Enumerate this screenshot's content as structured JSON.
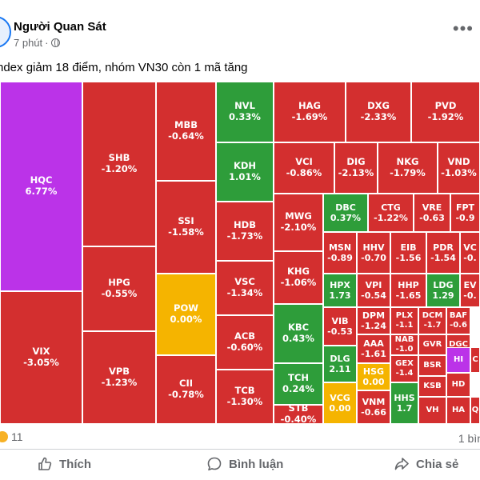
{
  "post": {
    "author": "Người Quan Sát",
    "time": "7 phút",
    "separator": "·",
    "text": "ndex giảm 18 điểm, nhóm VN30 còn 1 mã tăng"
  },
  "colors": {
    "red": "#d32f2f",
    "green": "#2e9d3a",
    "yellow": "#f5b400",
    "purple": "#bb33e8"
  },
  "heatmap": [
    {
      "ticker": "HQC",
      "change": "6.77%",
      "color": "purple",
      "size": "big"
    },
    {
      "ticker": "VIX",
      "change": "-3.05%",
      "color": "red",
      "size": "big"
    },
    {
      "ticker": "SHB",
      "change": "-1.20%",
      "color": "red",
      "size": "big"
    },
    {
      "ticker": "HPG",
      "change": "-0.55%",
      "color": "red",
      "size": "big"
    },
    {
      "ticker": "VPB",
      "change": "-1.23%",
      "color": "red",
      "size": "big"
    },
    {
      "ticker": "MBB",
      "change": "-0.64%",
      "color": "red",
      "size": "big"
    },
    {
      "ticker": "SSI",
      "change": "-1.58%",
      "color": "red",
      "size": "big"
    },
    {
      "ticker": "POW",
      "change": "0.00%",
      "color": "yellow",
      "size": "big"
    },
    {
      "ticker": "CII",
      "change": "-0.78%",
      "color": "red",
      "size": "big"
    },
    {
      "ticker": "NVL",
      "change": "0.33%",
      "color": "green",
      "size": "big"
    },
    {
      "ticker": "KDH",
      "change": "1.01%",
      "color": "green",
      "size": "big"
    },
    {
      "ticker": "HDB",
      "change": "-1.73%",
      "color": "red",
      "size": "big"
    },
    {
      "ticker": "VSC",
      "change": "-1.34%",
      "color": "red",
      "size": "big"
    },
    {
      "ticker": "ACB",
      "change": "-0.60%",
      "color": "red",
      "size": "big"
    },
    {
      "ticker": "TCB",
      "change": "-1.30%",
      "color": "red",
      "size": "big"
    },
    {
      "ticker": "HAG",
      "change": "-1.69%",
      "color": "red",
      "size": "big"
    },
    {
      "ticker": "DXG",
      "change": "-2.33%",
      "color": "red",
      "size": "big"
    },
    {
      "ticker": "PVD",
      "change": "-1.92%",
      "color": "red",
      "size": "big"
    },
    {
      "ticker": "VCI",
      "change": "-0.86%",
      "color": "red",
      "size": "big"
    },
    {
      "ticker": "DIG",
      "change": "-2.13%",
      "color": "red",
      "size": "big"
    },
    {
      "ticker": "NKG",
      "change": "-1.79%",
      "color": "red",
      "size": "big"
    },
    {
      "ticker": "VND",
      "change": "-1.03%",
      "color": "red",
      "size": "big"
    },
    {
      "ticker": "MWG",
      "change": "-2.10%",
      "color": "red",
      "size": "big"
    },
    {
      "ticker": "KHG",
      "change": "-1.06%",
      "color": "red",
      "size": "big"
    },
    {
      "ticker": "KBC",
      "change": "0.43%",
      "color": "green",
      "size": "big"
    },
    {
      "ticker": "TCH",
      "change": "0.24%",
      "color": "green",
      "size": "big"
    },
    {
      "ticker": "STB",
      "change": "-0.40%",
      "color": "red",
      "size": "big"
    },
    {
      "ticker": "DBC",
      "change": "0.37%",
      "color": "green",
      "size": "mid"
    },
    {
      "ticker": "CTG",
      "change": "-1.22%",
      "color": "red",
      "size": "mid"
    },
    {
      "ticker": "VRE",
      "change": "-0.63",
      "color": "red",
      "size": "mid"
    },
    {
      "ticker": "FPT",
      "change": "-0.9",
      "color": "red",
      "size": "mid"
    },
    {
      "ticker": "MSN",
      "change": "-0.89",
      "color": "red",
      "size": "mid"
    },
    {
      "ticker": "HHV",
      "change": "-0.70",
      "color": "red",
      "size": "mid"
    },
    {
      "ticker": "EIB",
      "change": "-1.56",
      "color": "red",
      "size": "mid"
    },
    {
      "ticker": "PDR",
      "change": "-1.54",
      "color": "red",
      "size": "mid"
    },
    {
      "ticker": "VC",
      "change": "-0.",
      "color": "red",
      "size": "mid"
    },
    {
      "ticker": "HPX",
      "change": "1.73",
      "color": "green",
      "size": "mid"
    },
    {
      "ticker": "VPI",
      "change": "-0.54",
      "color": "red",
      "size": "mid"
    },
    {
      "ticker": "HHP",
      "change": "-1.65",
      "color": "red",
      "size": "mid"
    },
    {
      "ticker": "LDG",
      "change": "1.29",
      "color": "green",
      "size": "mid"
    },
    {
      "ticker": "EV",
      "change": "-0.",
      "color": "red",
      "size": "mid"
    },
    {
      "ticker": "VIB",
      "change": "-0.53",
      "color": "red",
      "size": "mid"
    },
    {
      "ticker": "DPM",
      "change": "-1.24",
      "color": "red",
      "size": "mid"
    },
    {
      "ticker": "PLX",
      "change": "-1.1",
      "color": "red",
      "size": "small"
    },
    {
      "ticker": "DCM",
      "change": "-1.7",
      "color": "red",
      "size": "small"
    },
    {
      "ticker": "BAF",
      "change": "-0.6",
      "color": "red",
      "size": "small"
    },
    {
      "ticker": "AAA",
      "change": "-1.61",
      "color": "red",
      "size": "mid"
    },
    {
      "ticker": "NAB",
      "change": "-1.0",
      "color": "red",
      "size": "small"
    },
    {
      "ticker": "GVR",
      "change": "",
      "color": "red",
      "size": "small"
    },
    {
      "ticker": "DGC",
      "change": "",
      "color": "red",
      "size": "small"
    },
    {
      "ticker": "DLG",
      "change": "2.11",
      "color": "green",
      "size": "mid"
    },
    {
      "ticker": "GEX",
      "change": "-1.4",
      "color": "red",
      "size": "small"
    },
    {
      "ticker": "BSR",
      "change": "",
      "color": "red",
      "size": "small"
    },
    {
      "ticker": "HI",
      "change": "",
      "color": "purple",
      "size": "small"
    },
    {
      "ticker": "C",
      "change": "",
      "color": "red",
      "size": "small"
    },
    {
      "ticker": "HSG",
      "change": "0.00",
      "color": "yellow",
      "size": "mid"
    },
    {
      "ticker": "KSB",
      "change": "",
      "color": "red",
      "size": "small"
    },
    {
      "ticker": "HD",
      "change": "",
      "color": "red",
      "size": "small"
    },
    {
      "ticker": "VCG",
      "change": "0.00",
      "color": "yellow",
      "size": "mid"
    },
    {
      "ticker": "VNM",
      "change": "-0.66",
      "color": "red",
      "size": "mid"
    },
    {
      "ticker": "HHS",
      "change": "1.7",
      "color": "green",
      "size": "mid"
    },
    {
      "ticker": "VH",
      "change": "",
      "color": "red",
      "size": "small"
    },
    {
      "ticker": "HA",
      "change": "",
      "color": "red",
      "size": "small"
    },
    {
      "ticker": "Q",
      "change": "",
      "color": "red",
      "size": "small"
    }
  ],
  "footer": {
    "reaction_count": "11",
    "shares_partial": "1 bìn",
    "like_label": "Thích",
    "comment_label": "Bình luận",
    "share_label": "Chia sẻ"
  }
}
